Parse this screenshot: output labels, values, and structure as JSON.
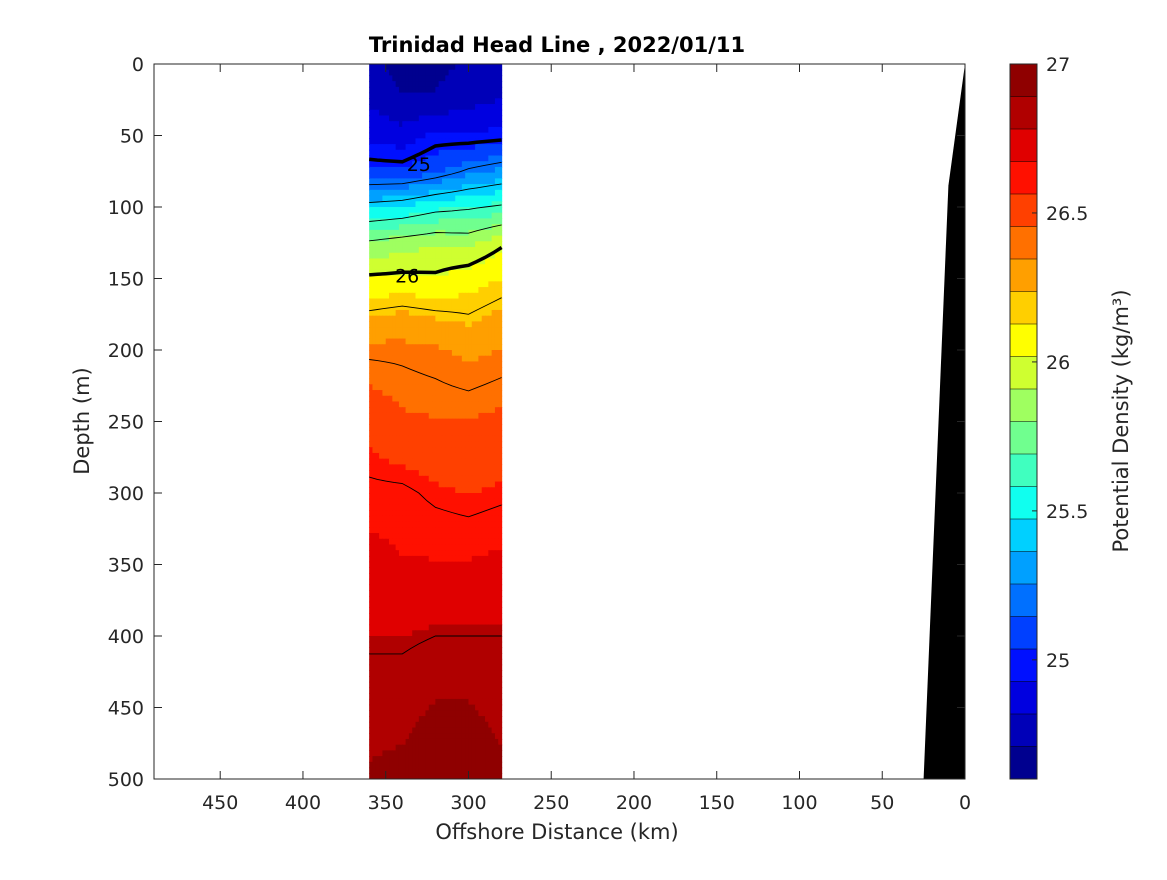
{
  "chart_data": {
    "type": "heatmap",
    "title": "Trinidad Head Line , 2022/01/11",
    "xlabel": "Offshore Distance (km)",
    "ylabel": "Depth (m)",
    "colorbar_label": "Potential Density (kg/m³)",
    "xlim": [
      490,
      0
    ],
    "ylim": [
      0,
      500
    ],
    "x_reversed": true,
    "y_reversed": true,
    "x_ticks": [
      "450",
      "400",
      "350",
      "300",
      "250",
      "200",
      "150",
      "100",
      "50",
      "0"
    ],
    "x_tick_values": [
      450,
      400,
      350,
      300,
      250,
      200,
      150,
      100,
      50,
      0
    ],
    "y_ticks": [
      "0",
      "50",
      "100",
      "150",
      "200",
      "250",
      "300",
      "350",
      "400",
      "450",
      "500"
    ],
    "y_tick_values": [
      0,
      50,
      100,
      150,
      200,
      250,
      300,
      350,
      400,
      450,
      500
    ],
    "colorbar": {
      "range": [
        24.6,
        27.0
      ],
      "ticks": [
        "25",
        "25.5",
        "26",
        "26.5",
        "27"
      ],
      "tick_values": [
        25,
        25.5,
        26,
        26.5,
        27
      ],
      "colors": [
        "#00008f",
        "#0000b8",
        "#0000e0",
        "#0010ff",
        "#0040ff",
        "#0070ff",
        "#00a0ff",
        "#00d0ff",
        "#10ffef",
        "#40ffbf",
        "#70ff8f",
        "#9fff60",
        "#cfff30",
        "#ffff00",
        "#ffcf00",
        "#ff9f00",
        "#ff7000",
        "#ff4000",
        "#ff1000",
        "#e00000",
        "#b00000",
        "#8f0000"
      ]
    },
    "data_extent_x": [
      360,
      280
    ],
    "density_x": [
      360,
      340,
      320,
      300,
      280
    ],
    "density_depth": [
      0,
      25,
      50,
      75,
      100,
      125,
      150,
      175,
      200,
      250,
      300,
      350,
      400,
      450,
      500
    ],
    "density_values": [
      [
        24.75,
        24.65,
        24.68,
        24.72,
        24.78
      ],
      [
        24.8,
        24.72,
        24.72,
        24.78,
        24.82
      ],
      [
        24.9,
        24.86,
        24.95,
        24.94,
        24.96
      ],
      [
        25.05,
        25.05,
        25.12,
        25.22,
        25.28
      ],
      [
        25.45,
        25.48,
        25.55,
        25.58,
        25.62
      ],
      [
        25.82,
        25.86,
        25.9,
        25.88,
        25.98
      ],
      [
        26.02,
        26.03,
        26.02,
        26.07,
        26.13
      ],
      [
        26.22,
        26.25,
        26.22,
        26.2,
        26.26
      ],
      [
        26.38,
        26.38,
        26.36,
        26.32,
        26.35
      ],
      [
        26.53,
        26.47,
        26.46,
        26.46,
        26.48
      ],
      [
        26.62,
        26.62,
        26.58,
        26.56,
        26.58
      ],
      [
        26.72,
        26.68,
        26.68,
        26.68,
        26.7
      ],
      [
        26.78,
        26.78,
        26.8,
        26.8,
        26.8
      ],
      [
        26.86,
        26.86,
        26.9,
        26.9,
        26.86
      ],
      [
        26.9,
        26.92,
        26.96,
        26.96,
        26.92
      ]
    ],
    "contour_labels": [
      {
        "text": "25",
        "x": 330,
        "depth": 70
      },
      {
        "text": "26",
        "x": 337,
        "depth": 148
      }
    ],
    "shelf_bathymetry": {
      "x": [
        25,
        10,
        0
      ],
      "depth": [
        500,
        85,
        0
      ]
    },
    "grid": false
  }
}
